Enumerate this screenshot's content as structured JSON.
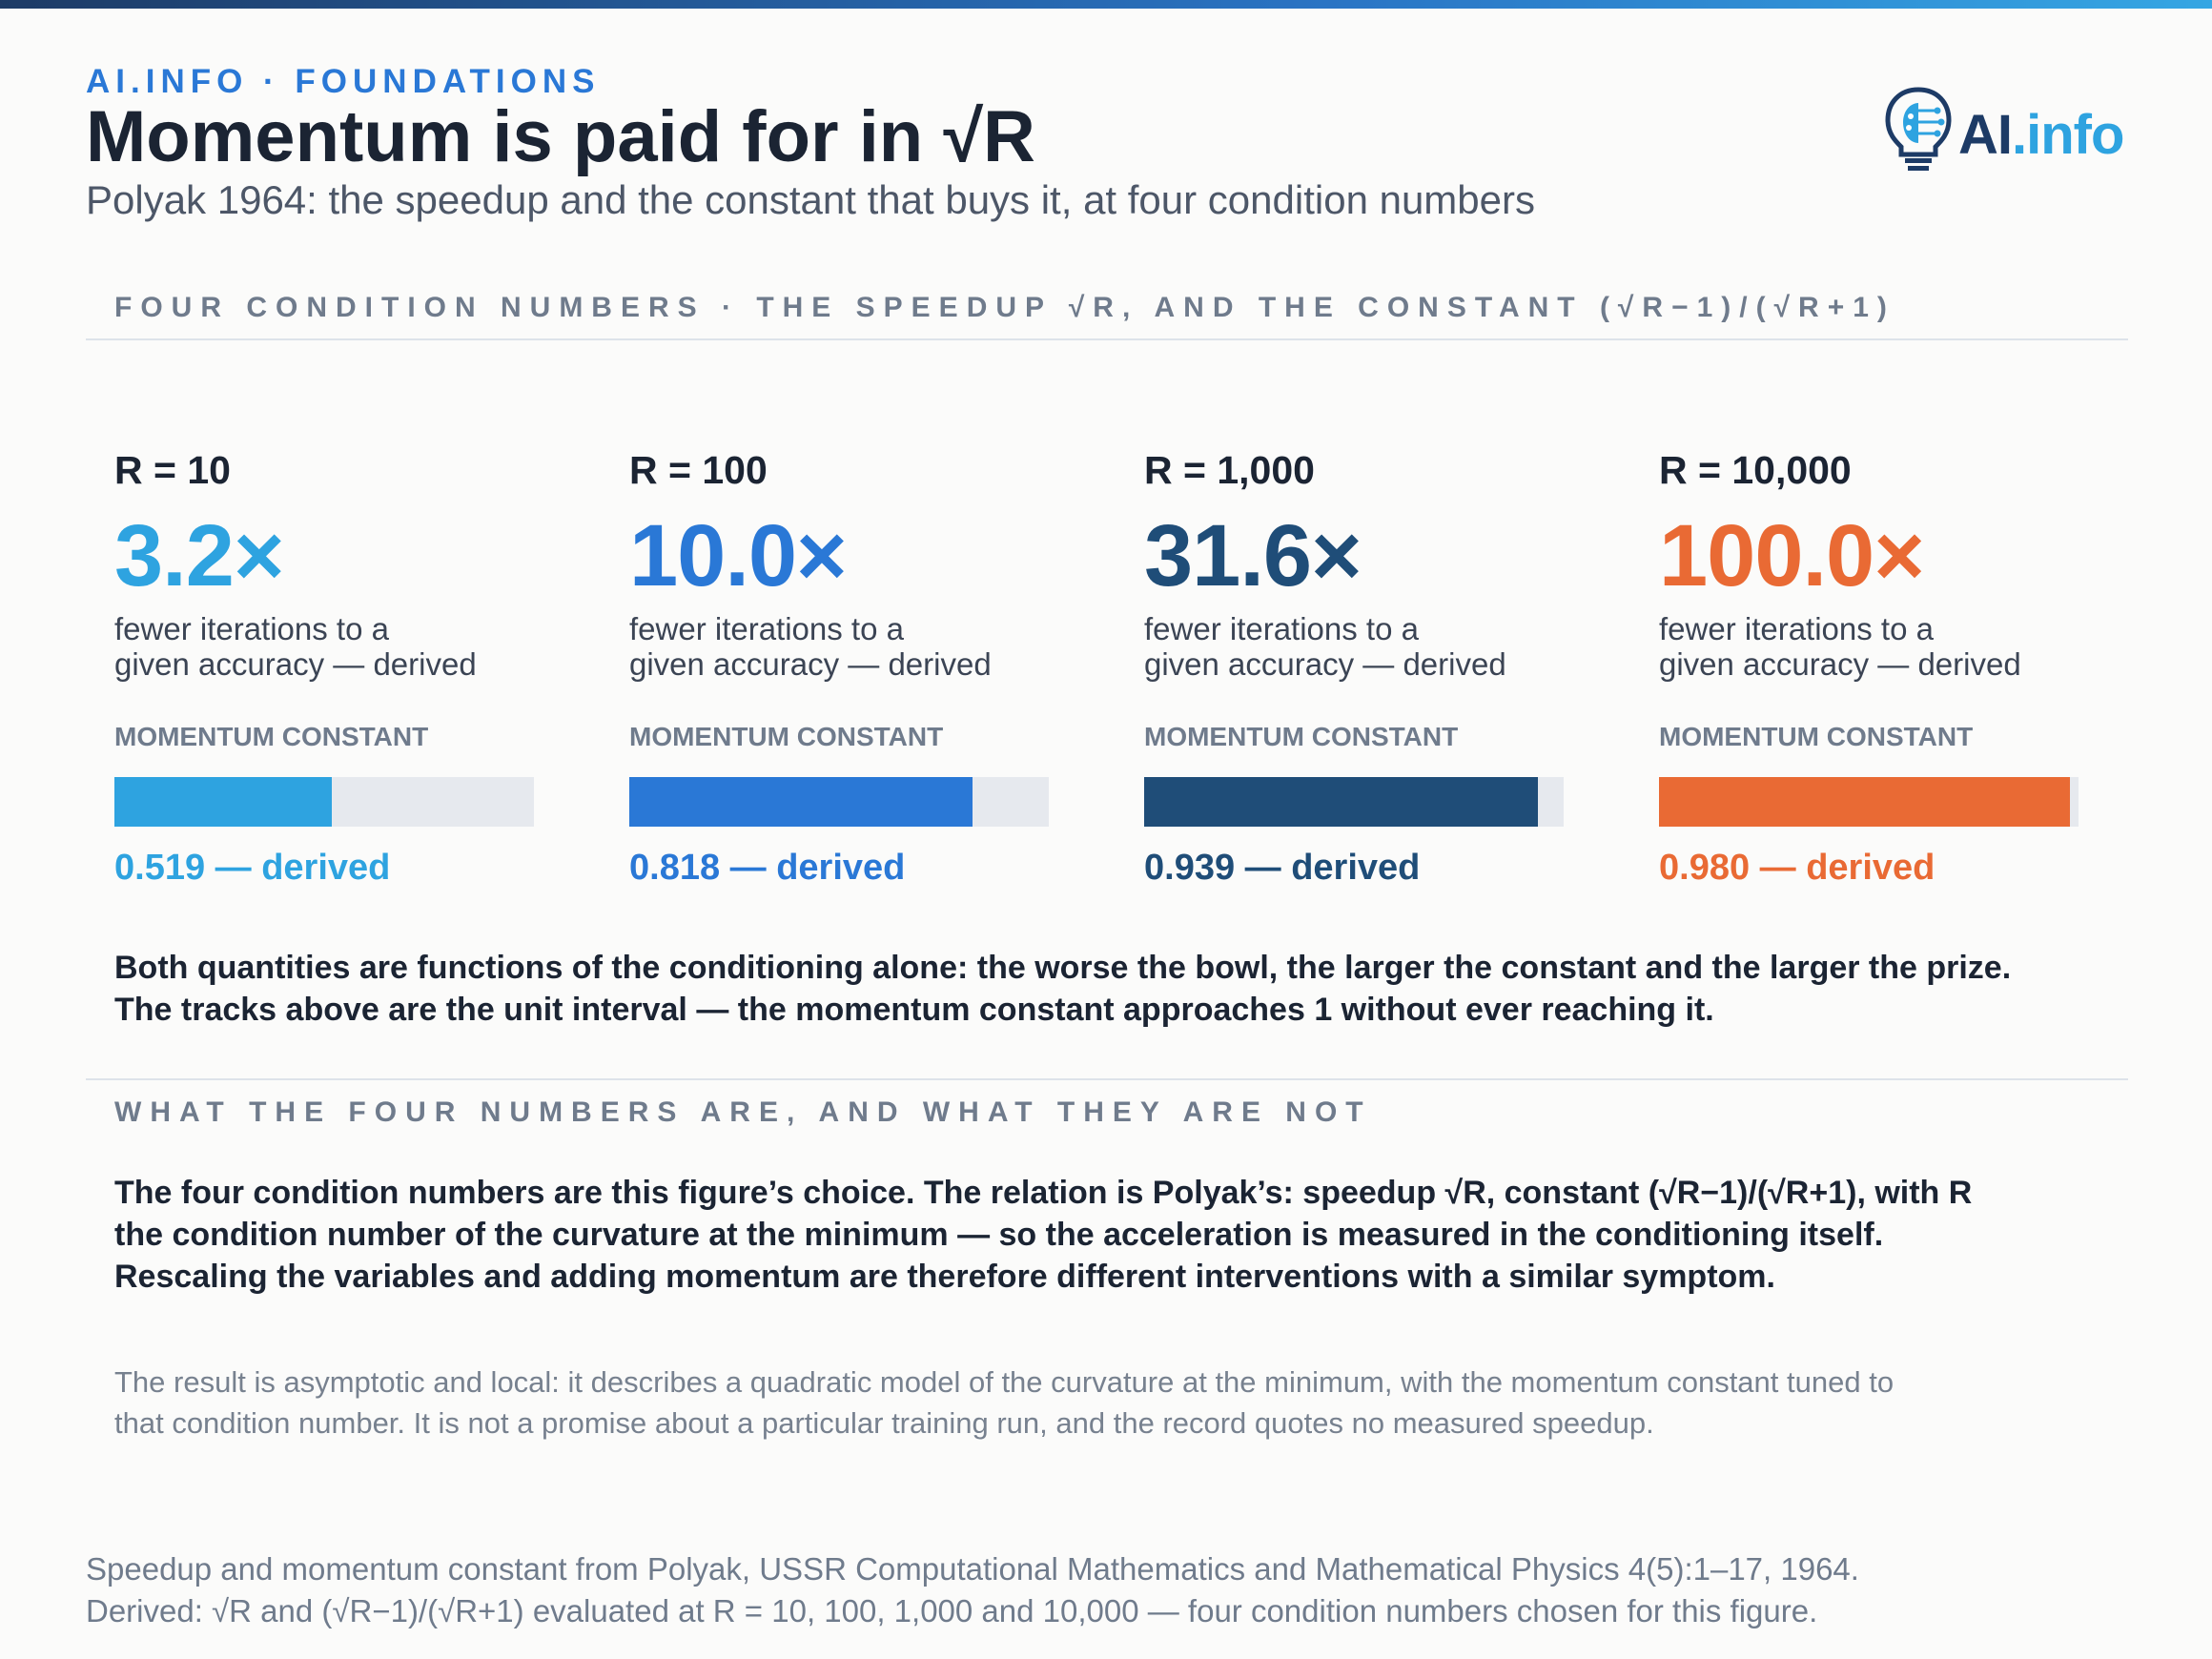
{
  "header": {
    "kicker": "AI.INFO · FOUNDATIONS",
    "title": "Momentum is paid for in √R",
    "subtitle": "Polyak 1964: the speedup and the constant that buys it, at four condition numbers"
  },
  "logo": {
    "text_ai": "AI",
    "text_info": ".info"
  },
  "section1": {
    "heading": "FOUR CONDITION NUMBERS · THE SPEEDUP √R, AND THE CONSTANT (√R−1)/(√R+1)"
  },
  "columns": [
    {
      "r_label": "R = 10",
      "speedup": "3.2×",
      "desc_line1": "fewer iterations to a",
      "desc_line2": "given accuracy — derived",
      "constant_label": "MOMENTUM CONSTANT",
      "constant_value": 0.519,
      "constant_text": "0.519 — derived",
      "color": "#2ea3e0"
    },
    {
      "r_label": "R = 100",
      "speedup": "10.0×",
      "desc_line1": "fewer iterations to a",
      "desc_line2": "given accuracy — derived",
      "constant_label": "MOMENTUM CONSTANT",
      "constant_value": 0.818,
      "constant_text": "0.818 — derived",
      "color": "#2a78d6"
    },
    {
      "r_label": "R = 1,000",
      "speedup": "31.6×",
      "desc_line1": "fewer iterations to a",
      "desc_line2": "given accuracy — derived",
      "constant_label": "MOMENTUM CONSTANT",
      "constant_value": 0.939,
      "constant_text": "0.939 — derived",
      "color": "#1f4d78"
    },
    {
      "r_label": "R = 10,000",
      "speedup": "100.0×",
      "desc_line1": "fewer iterations to a",
      "desc_line2": "given accuracy — derived",
      "constant_label": "MOMENTUM CONSTANT",
      "constant_value": 0.98,
      "constant_text": "0.980 — derived",
      "color": "#e96a34"
    }
  ],
  "summary": {
    "line1": "Both quantities are functions of the conditioning alone: the worse the bowl, the larger the constant and the larger the prize.",
    "line2": "The tracks above are the unit interval — the momentum constant approaches 1 without ever reaching it."
  },
  "section2": {
    "heading": "WHAT THE FOUR NUMBERS ARE, AND WHAT THEY ARE NOT"
  },
  "explanation": {
    "line1": "The four condition numbers are this figure’s choice. The relation is Polyak’s: speedup √R, constant (√R−1)/(√R+1), with R",
    "line2": "the condition number of the curvature at the minimum — so the acceleration is measured in the conditioning itself.",
    "line3": "Rescaling the variables and adding momentum are therefore different interventions with a similar symptom."
  },
  "caveat": {
    "line1": "The result is asymptotic and local: it describes a quadratic model of the curvature at the minimum, with the momentum constant tuned to",
    "line2": "that condition number. It is not a promise about a particular training run, and the record quotes no measured speedup."
  },
  "footer": {
    "line1": "Speedup and momentum constant from Polyak, USSR Computational Mathematics and Mathematical Physics 4(5):1–17, 1964.",
    "line2": "Derived: √R and (√R−1)/(√R+1) evaluated at R = 10, 100, 1,000 and 10,000 — four condition numbers chosen for this figure."
  }
}
